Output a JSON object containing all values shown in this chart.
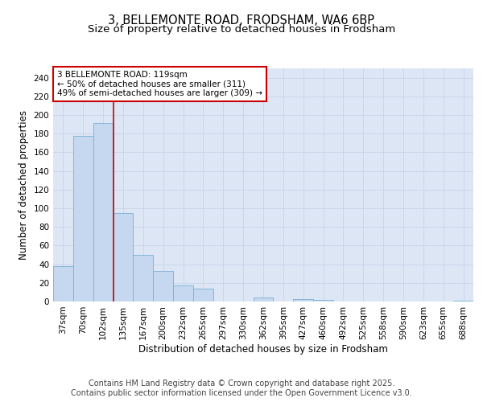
{
  "title1": "3, BELLEMONTE ROAD, FRODSHAM, WA6 6BP",
  "title2": "Size of property relative to detached houses in Frodsham",
  "xlabel": "Distribution of detached houses by size in Frodsham",
  "ylabel": "Number of detached properties",
  "categories": [
    "37sqm",
    "70sqm",
    "102sqm",
    "135sqm",
    "167sqm",
    "200sqm",
    "232sqm",
    "265sqm",
    "297sqm",
    "330sqm",
    "362sqm",
    "395sqm",
    "427sqm",
    "460sqm",
    "492sqm",
    "525sqm",
    "558sqm",
    "590sqm",
    "623sqm",
    "655sqm",
    "688sqm"
  ],
  "values": [
    38,
    178,
    191,
    95,
    50,
    33,
    17,
    14,
    0,
    0,
    4,
    0,
    3,
    2,
    0,
    0,
    0,
    0,
    0,
    0,
    1
  ],
  "bar_color": "#c5d8ef",
  "bar_edge_color": "#7bafd4",
  "vline_x": 2.5,
  "vline_color": "#cc0000",
  "annotation_text": "3 BELLEMONTE ROAD: 119sqm\n← 50% of detached houses are smaller (311)\n49% of semi-detached houses are larger (309) →",
  "annotation_box_color": "#ffffff",
  "annotation_box_edge": "#cc0000",
  "ylim": [
    0,
    250
  ],
  "yticks": [
    0,
    20,
    40,
    60,
    80,
    100,
    120,
    140,
    160,
    180,
    200,
    220,
    240
  ],
  "grid_color": "#c8d4e8",
  "background_color": "#dce6f5",
  "footer_text": "Contains HM Land Registry data © Crown copyright and database right 2025.\nContains public sector information licensed under the Open Government Licence v3.0.",
  "title_fontsize": 10.5,
  "subtitle_fontsize": 9.5,
  "axis_label_fontsize": 8.5,
  "tick_fontsize": 7.5,
  "footer_fontsize": 7,
  "ann_fontsize": 7.5
}
